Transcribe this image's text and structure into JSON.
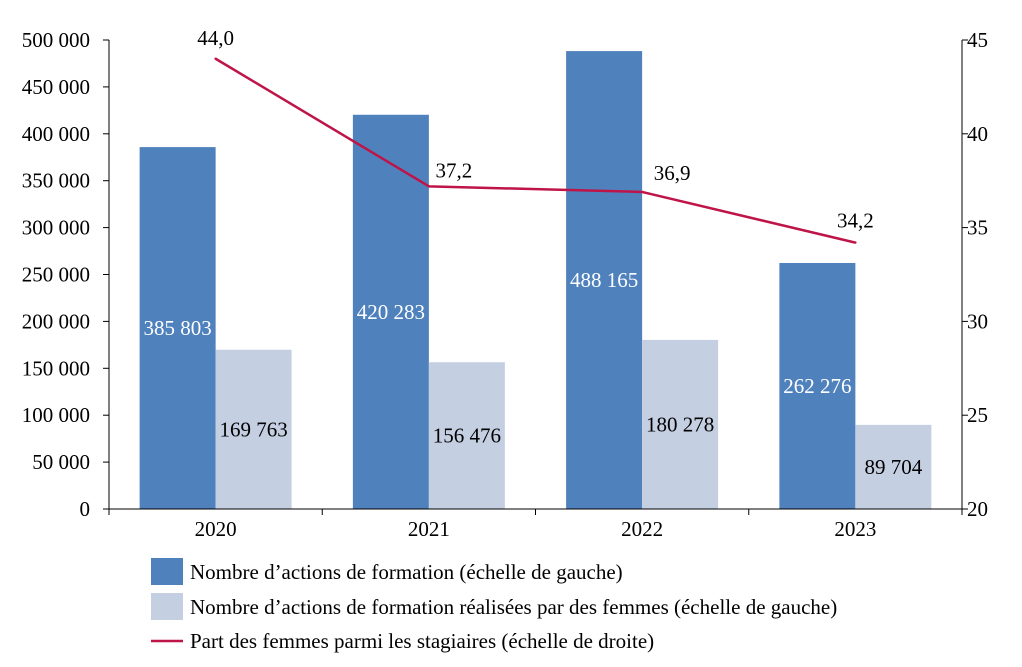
{
  "chart_data": {
    "type": "bar",
    "categories": [
      "2020",
      "2021",
      "2022",
      "2023"
    ],
    "series": [
      {
        "name": "Nombre d’actions de formation (échelle de gauche)",
        "kind": "bar",
        "axis": "left",
        "color": "#4f81bd",
        "label_color": "#ffffff",
        "values": [
          385803,
          420283,
          488165,
          262276
        ],
        "labels": [
          "385 803",
          "420 283",
          "488 165",
          "262 276"
        ]
      },
      {
        "name": "Nombre d’actions de formation réalisées par des femmes (échelle de gauche)",
        "kind": "bar",
        "axis": "left",
        "color": "#c5cfe2",
        "label_color": "#000000",
        "values": [
          169763,
          156476,
          180278,
          89704
        ],
        "labels": [
          "169 763",
          "156 476",
          "180 278",
          "89 704"
        ]
      },
      {
        "name": "Part des femmes parmi les stagiaires (échelle de droite)",
        "kind": "line",
        "axis": "right",
        "color": "#be1448",
        "label_color": "#000000",
        "values": [
          44.0,
          37.2,
          36.9,
          34.2
        ],
        "labels": [
          "44,0",
          "37,2",
          "36,9",
          "34,2"
        ]
      }
    ],
    "y_left": {
      "range": [
        0,
        500000
      ],
      "ticks": [
        0,
        50000,
        100000,
        150000,
        200000,
        250000,
        300000,
        350000,
        400000,
        450000,
        500000
      ],
      "tick_labels": [
        "0",
        "50 000",
        "100 000",
        "150 000",
        "200 000",
        "250 000",
        "300 000",
        "350 000",
        "400 000",
        "450 000",
        "500 000"
      ]
    },
    "y_right": {
      "range": [
        20,
        45
      ],
      "ticks": [
        20,
        25,
        30,
        35,
        40,
        45
      ],
      "tick_labels": [
        "20",
        "25",
        "30",
        "35",
        "40",
        "45"
      ]
    },
    "grid": false,
    "legend": "bottom"
  }
}
